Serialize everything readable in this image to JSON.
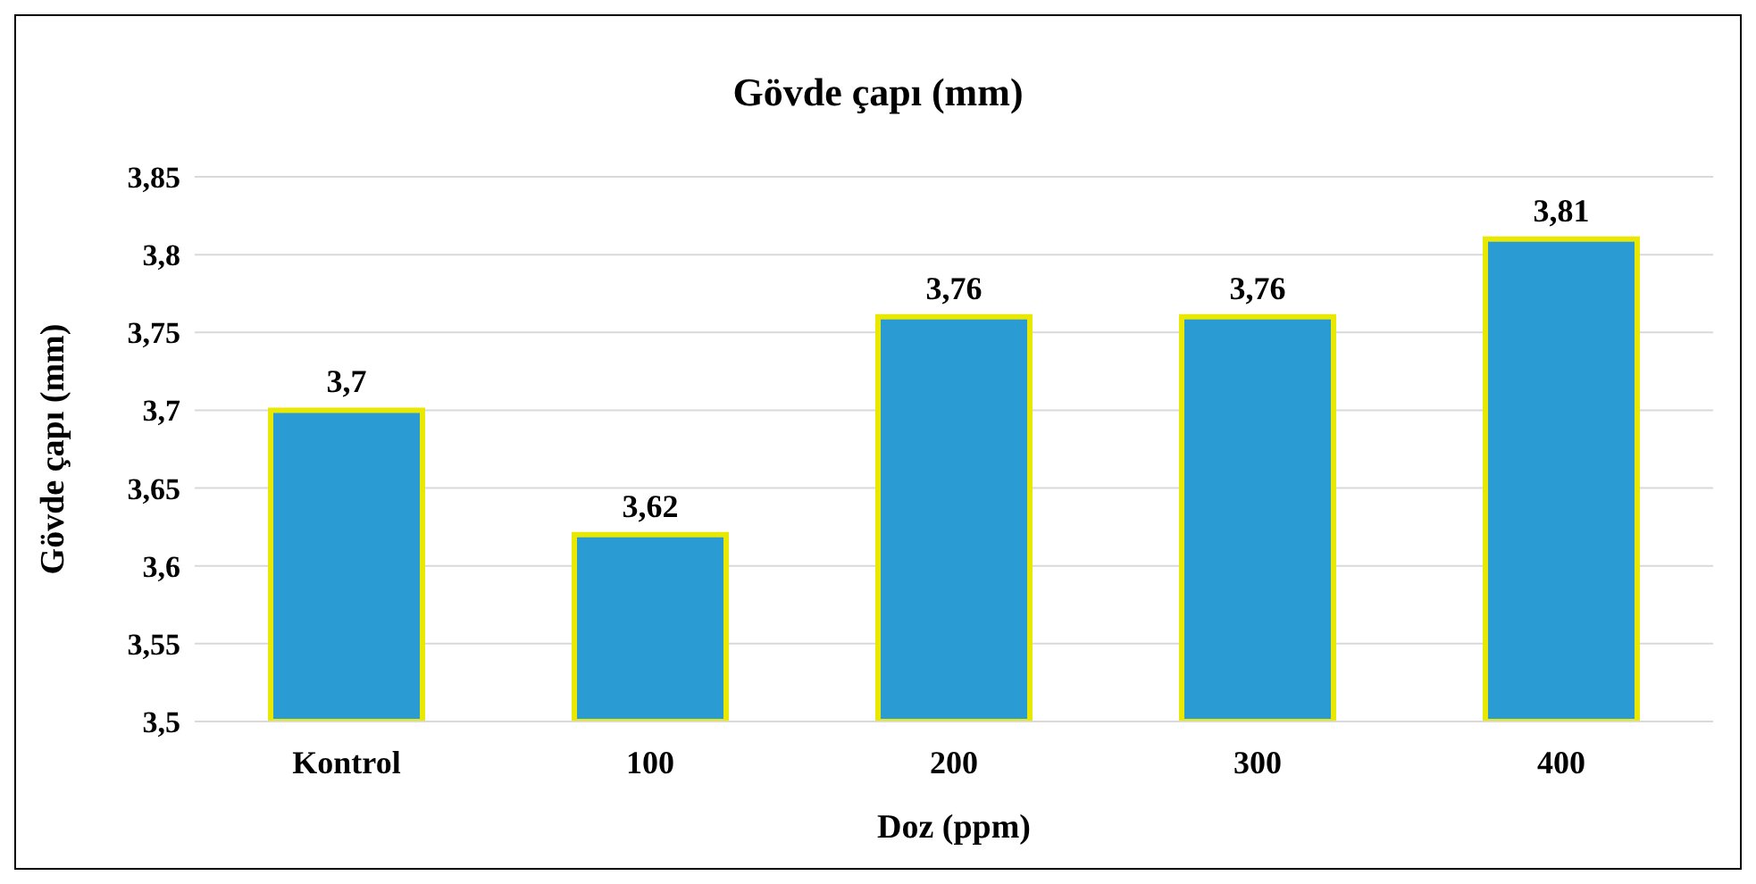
{
  "chart_data": {
    "type": "bar",
    "title": "Gövde çapı (mm)",
    "xlabel": "Doz (ppm)",
    "ylabel": "Gövde çapı (mm)",
    "categories": [
      "Kontrol",
      "100",
      "200",
      "300",
      "400"
    ],
    "values": [
      3.7,
      3.62,
      3.76,
      3.76,
      3.81
    ],
    "value_labels": [
      "3,7",
      "3,62",
      "3,76",
      "3,76",
      "3,81"
    ],
    "color": "#2b9bd3",
    "ylim": [
      3.5,
      3.85
    ],
    "yticks": [
      {
        "value": 3.5,
        "label": "3,5"
      },
      {
        "value": 3.55,
        "label": "3,55"
      },
      {
        "value": 3.6,
        "label": "3,6"
      },
      {
        "value": 3.65,
        "label": "3,65"
      },
      {
        "value": 3.7,
        "label": "3,7"
      },
      {
        "value": 3.75,
        "label": "3,75"
      },
      {
        "value": 3.8,
        "label": "3,8"
      },
      {
        "value": 3.85,
        "label": "3,85"
      }
    ],
    "grid": "y"
  }
}
